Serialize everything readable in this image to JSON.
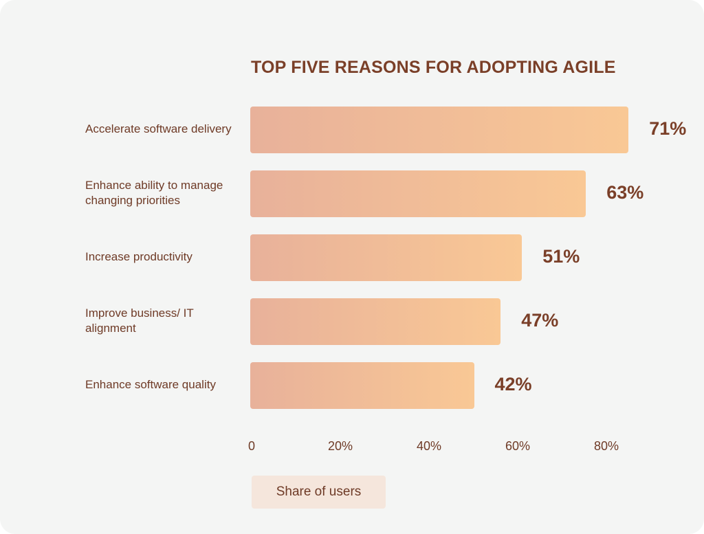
{
  "chart_data": {
    "type": "bar",
    "orientation": "horizontal",
    "title": "TOP FIVE REASONS FOR ADOPTING AGILE",
    "categories": [
      "Accelerate software delivery",
      "Enhance ability to manage changing priorities",
      "Increase productivity",
      "Improve business/ IT alignment",
      "Enhance software quality"
    ],
    "values": [
      71,
      63,
      51,
      47,
      42
    ],
    "value_labels": [
      "71%",
      "63%",
      "51%",
      "47%",
      "42%"
    ],
    "xlim": [
      0,
      80
    ],
    "x_ticks": [
      0,
      20,
      40,
      60,
      80
    ],
    "x_tick_labels": [
      "0",
      "20%",
      "40%",
      "60%",
      "80%"
    ],
    "legend": "Share of users",
    "grid": false,
    "bar_gradient": [
      "#e8b19a",
      "#f9c895"
    ]
  }
}
